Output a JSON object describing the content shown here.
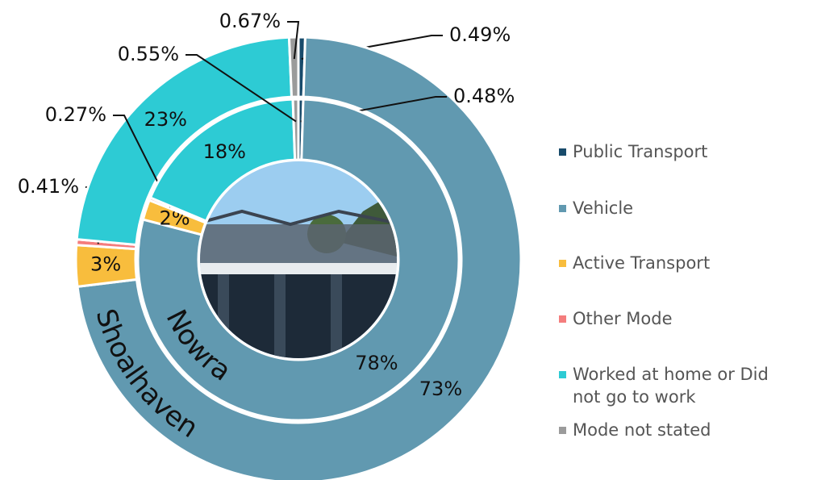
{
  "chart_data": {
    "type": "donut",
    "categories": [
      "Public Transport",
      "Vehicle",
      "Active Transport",
      "Other Mode",
      "Worked at home or Did not go to work",
      "Mode not stated"
    ],
    "colors": [
      "#184b6b",
      "#6199b0",
      "#f8bd3d",
      "#f47d7d",
      "#2dcbd4",
      "#9b9b9b"
    ],
    "series": [
      {
        "name": "Shoalhaven",
        "values": [
          0.49,
          73,
          3,
          0.41,
          23,
          0.67
        ],
        "value_labels": [
          "0.49%",
          "73%",
          "3%",
          "0.41%",
          "23%",
          "0.67%"
        ]
      },
      {
        "name": "Nowra",
        "values": [
          0.48,
          78,
          2,
          0.27,
          18,
          0.55
        ],
        "value_labels": [
          "0.48%",
          "78%",
          "2%",
          "0.27%",
          "18%",
          "0.55%"
        ]
      }
    ]
  }
}
